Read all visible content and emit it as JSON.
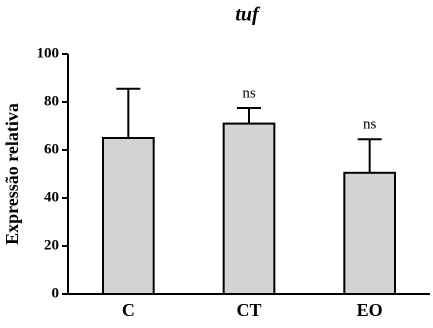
{
  "chart_data": {
    "type": "bar",
    "title": "tuf",
    "y_label": "Expressão relativa",
    "categories": [
      "C",
      "CT",
      "EO"
    ],
    "values": [
      65,
      71,
      50.5
    ],
    "errors": [
      20.5,
      6.5,
      14
    ],
    "significance": [
      null,
      "ns",
      "ns"
    ],
    "color": "#d3d3d3",
    "ylim": [
      0,
      100
    ],
    "yticks": [
      0,
      20,
      40,
      60,
      80,
      100
    ],
    "grid": false
  }
}
